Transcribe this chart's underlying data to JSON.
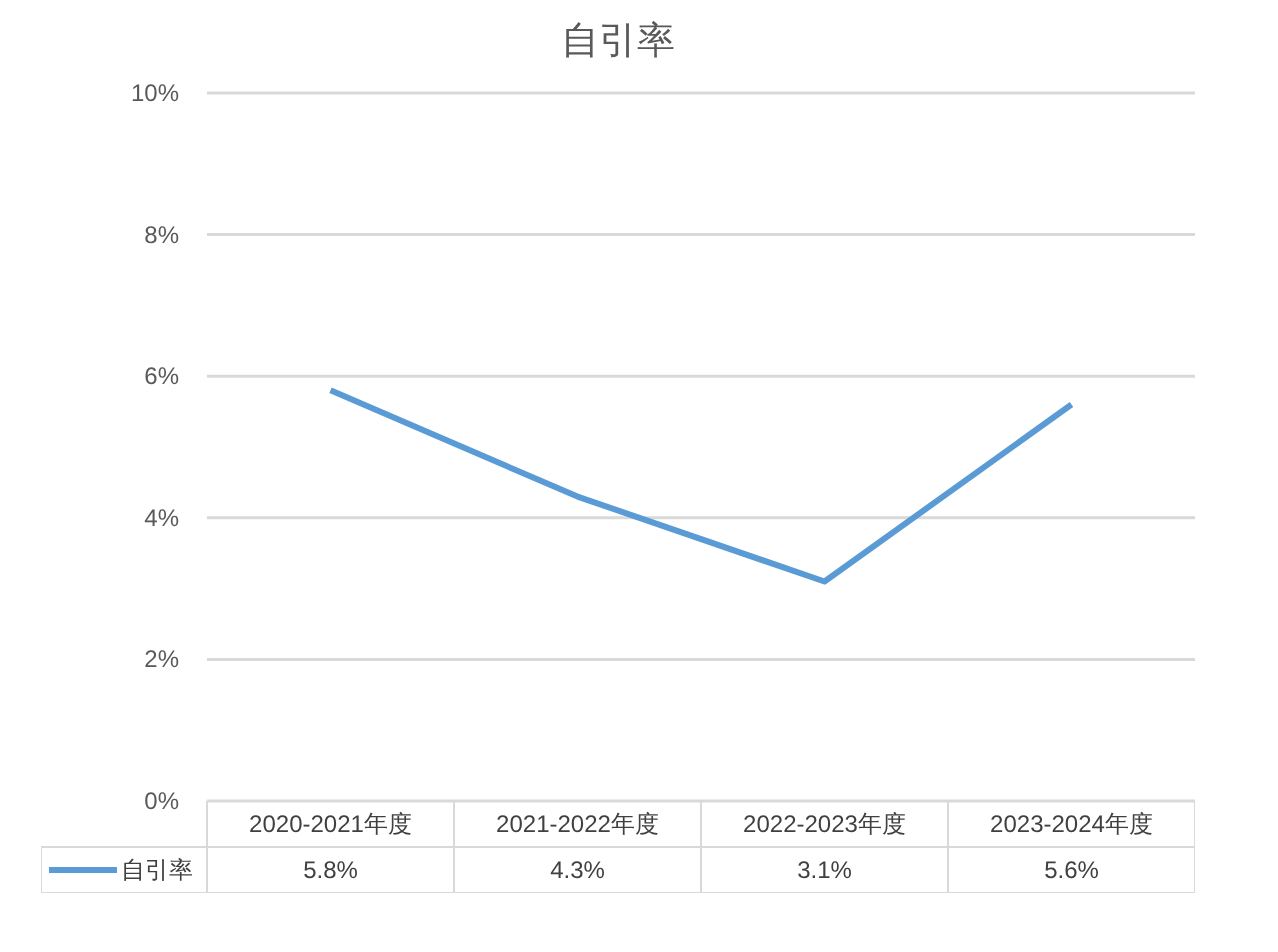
{
  "chart_data": {
    "type": "line",
    "title": "自引率",
    "categories": [
      "2020-2021年度",
      "2021-2022年度",
      "2022-2023年度",
      "2023-2024年度"
    ],
    "series": [
      {
        "name": "自引率",
        "color": "#5b9bd5",
        "values": [
          5.8,
          4.3,
          3.1,
          5.6
        ],
        "value_labels": [
          "5.8%",
          "4.3%",
          "3.1%",
          "5.6%"
        ]
      }
    ],
    "ylim": [
      0,
      10
    ],
    "yticks": [
      {
        "value": 0,
        "label": "0%"
      },
      {
        "value": 2,
        "label": "2%"
      },
      {
        "value": 4,
        "label": "4%"
      },
      {
        "value": 6,
        "label": "6%"
      },
      {
        "value": 8,
        "label": "8%"
      },
      {
        "value": 10,
        "label": "10%"
      }
    ],
    "grid": "y",
    "legend": "bottom left",
    "marker": "none",
    "line_style": "solid"
  }
}
